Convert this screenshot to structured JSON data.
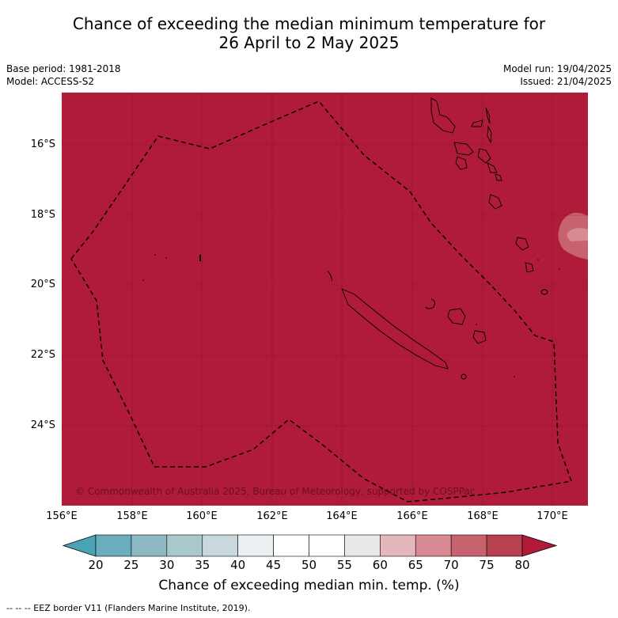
{
  "title_line1": "Chance of exceeding the median minimum temperature for",
  "title_line2": "26 April to 2 May 2025",
  "base_period": "Base period: 1981-2018",
  "model": "Model: ACCESS-S2",
  "model_run": "Model run: 19/04/2025",
  "issued": "Issued: 21/04/2025",
  "copyright": "© Commonwealth of Australia 2025, Bureau of Meteorology, supported by COSPPac",
  "lat_labels": [
    "16°S",
    "18°S",
    "20°S",
    "22°S",
    "24°S"
  ],
  "lon_labels": [
    "156°E",
    "158°E",
    "160°E",
    "162°E",
    "164°E",
    "166°E",
    "168°E",
    "170°E"
  ],
  "colorbar": {
    "ticks": [
      "20",
      "25",
      "30",
      "35",
      "40",
      "45",
      "50",
      "55",
      "60",
      "65",
      "70",
      "75",
      "80"
    ],
    "colors": [
      "#4aa3b3",
      "#6aaebd",
      "#8cb9c3",
      "#a9c8cc",
      "#c8d8dc",
      "#ebf0f2",
      "#ffffff",
      "#ffffff",
      "#e8e8e8",
      "#e3b7bc",
      "#d98b95",
      "#c8626f",
      "#b84150",
      "#b01b3a"
    ],
    "title": "Chance of exceeding median min. temp. (%)"
  },
  "footer": "-- -- -- EEZ border V11 (Flanders Marine Institute, 2019).",
  "map": {
    "main_color": "#b01b3a",
    "lighter_color": "#c8626f",
    "lightest_color": "#d98b95"
  }
}
